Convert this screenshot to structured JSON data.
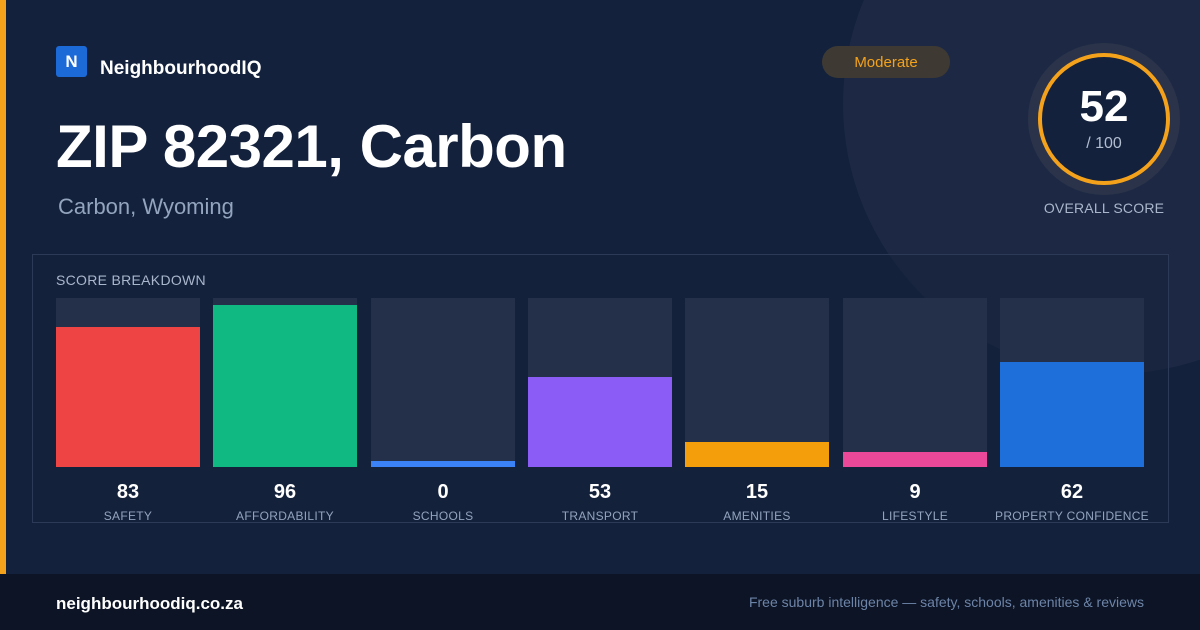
{
  "brand": {
    "logo_letter": "N",
    "name": "NeighbourhoodIQ"
  },
  "badge": {
    "label": "Moderate"
  },
  "header": {
    "title": "ZIP 82321, Carbon",
    "subtitle": "Carbon, Wyoming"
  },
  "overall": {
    "score": "52",
    "max": "/ 100",
    "caption": "OVERALL SCORE"
  },
  "breakdown": {
    "title": "SCORE BREAKDOWN",
    "items": [
      {
        "label": "SAFETY",
        "value": 83,
        "color": "#ef4444"
      },
      {
        "label": "AFFORDABILITY",
        "value": 96,
        "color": "#10b981"
      },
      {
        "label": "SCHOOLS",
        "value": 0,
        "color": "#3b82f6"
      },
      {
        "label": "TRANSPORT",
        "value": 53,
        "color": "#8b5cf6"
      },
      {
        "label": "AMENITIES",
        "value": 15,
        "color": "#f59e0b"
      },
      {
        "label": "LIFESTYLE",
        "value": 9,
        "color": "#ec4899"
      },
      {
        "label": "PROPERTY CONFIDENCE",
        "value": 62,
        "color": "#1e6fd9"
      }
    ]
  },
  "footer": {
    "domain": "neighbourhoodiq.co.za",
    "tagline": "Free suburb intelligence — safety, schools, amenities & reviews"
  },
  "colors": {
    "accent": "#f4a21b",
    "background": "#13213c",
    "footer": "#0c1425",
    "brand_blue": "#1c6ad8"
  }
}
